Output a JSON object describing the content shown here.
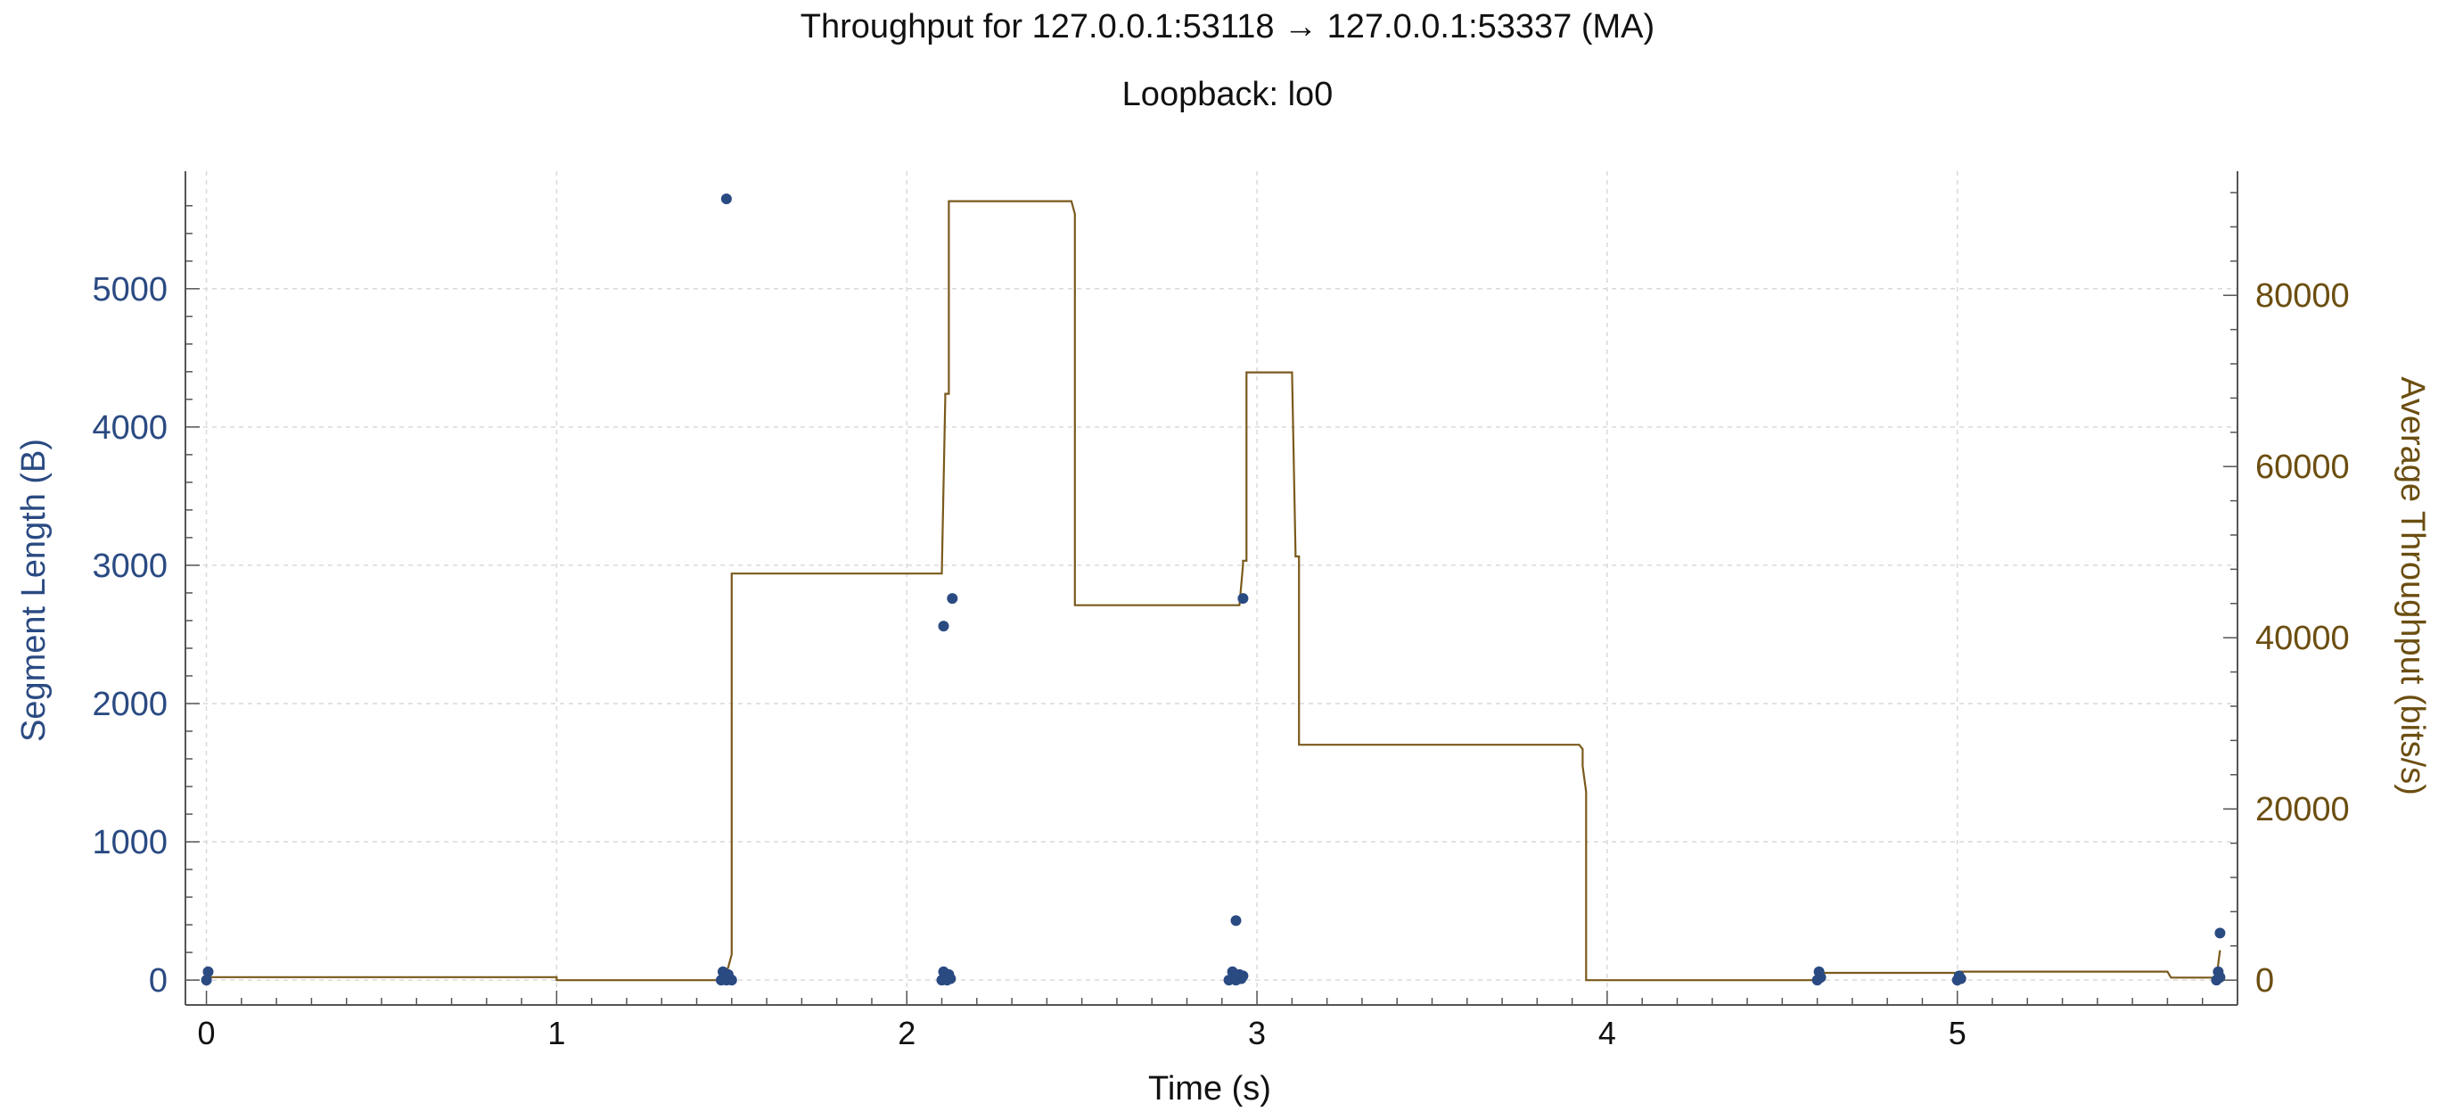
{
  "chart_data": {
    "type": "scatter",
    "title": "Throughput for 127.0.0.1:53118 → 127.0.0.1:53337 (MA)",
    "subtitle": "Loopback: lo0",
    "xlabel": "Time (s)",
    "ylabel": "Segment Length (B)",
    "y2label": "Average Throughput (bits/s)",
    "xlim": [
      -0.06,
      5.8
    ],
    "ylim": [
      -180,
      5850
    ],
    "y2lim": [
      -2900,
      94500
    ],
    "xticks": [
      "0",
      "1",
      "2",
      "3",
      "4",
      "5"
    ],
    "yticks": [
      "0",
      "1000",
      "2000",
      "3000",
      "4000",
      "5000"
    ],
    "y2ticks": [
      "0",
      "20000",
      "40000",
      "60000",
      "80000"
    ],
    "grid": true,
    "colors": {
      "segments": "#2a4a82",
      "throughput": "#7a5a1c",
      "left_axis": "#2a4a82",
      "right_axis": "#6b4e10"
    },
    "series": [
      {
        "type": "scatter",
        "axis": "left",
        "x": [
          0.0,
          0.005,
          1.47,
          1.475,
          1.48,
          1.485,
          1.49,
          1.495,
          1.5,
          1.485,
          2.1,
          2.105,
          2.11,
          2.115,
          2.12,
          2.125,
          2.105,
          2.13,
          2.92,
          2.93,
          2.935,
          2.94,
          2.95,
          2.955,
          2.96,
          2.94,
          2.96,
          4.6,
          4.605,
          4.61,
          5.0,
          5.005,
          5.01,
          5.74,
          5.745,
          5.75,
          5.75
        ],
        "y": [
          0,
          60,
          0,
          60,
          20,
          0,
          40,
          10,
          0,
          5650,
          0,
          60,
          20,
          0,
          40,
          10,
          2560,
          2760,
          0,
          60,
          20,
          0,
          40,
          10,
          30,
          430,
          2760,
          0,
          60,
          20,
          0,
          30,
          10,
          0,
          60,
          340,
          20
        ]
      },
      {
        "type": "step",
        "axis": "right",
        "x": [
          0.0,
          1.0,
          1.0,
          1.47,
          1.48,
          1.49,
          1.5,
          1.5,
          2.1,
          2.11,
          2.11,
          2.12,
          2.12,
          2.47,
          2.48,
          2.48,
          2.95,
          2.96,
          2.96,
          2.97,
          2.97,
          3.1,
          3.11,
          3.11,
          3.12,
          3.12,
          3.92,
          3.93,
          3.93,
          3.94,
          3.94,
          4.6,
          4.61,
          5.0,
          5.01,
          5.6,
          5.61,
          5.74,
          5.75
        ],
        "y": [
          350,
          350,
          0,
          0,
          550,
          1500,
          3000,
          47500,
          47500,
          68000,
          68500,
          68500,
          91000,
          91000,
          89500,
          43800,
          43800,
          48500,
          49000,
          49000,
          71000,
          71000,
          50000,
          49500,
          49500,
          27500,
          27500,
          27000,
          25000,
          22000,
          0,
          0,
          850,
          850,
          1000,
          1000,
          300,
          300,
          3500
        ]
      }
    ]
  }
}
